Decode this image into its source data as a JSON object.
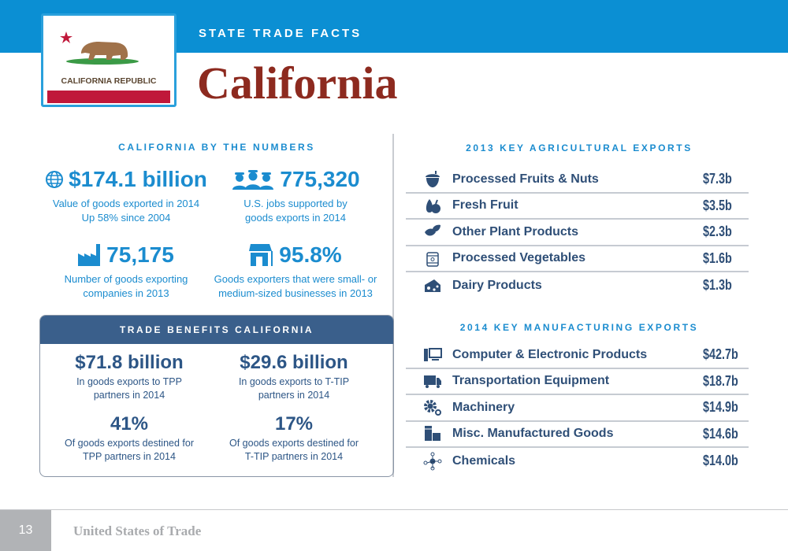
{
  "header": {
    "kicker": "STATE TRADE FACTS",
    "title": "California",
    "flag_text": "CALIFORNIA REPUBLIC"
  },
  "numbers": {
    "heading": "CALIFORNIA BY THE NUMBERS",
    "stats": [
      {
        "icon": "globe-icon",
        "value": "$174.1 billion",
        "desc1": "Value of goods exported in 2014",
        "desc2": "Up 58% since 2004"
      },
      {
        "icon": "workers-icon",
        "value": "775,320",
        "desc1": "U.S. jobs supported by",
        "desc2": "goods exports in 2014"
      },
      {
        "icon": "factory-icon",
        "value": "75,175",
        "desc1": "Number of goods exporting",
        "desc2": "companies in 2013"
      },
      {
        "icon": "storefront-icon",
        "value": "95.8%",
        "desc1": "Goods exporters that were small- or",
        "desc2": "medium-sized businesses in 2013"
      }
    ]
  },
  "benefits": {
    "heading": "TRADE BENEFITS CALIFORNIA",
    "items": [
      {
        "value": "$71.8 billion",
        "desc1": "In goods exports to TPP",
        "desc2": "partners in 2014"
      },
      {
        "value": "$29.6 billion",
        "desc1": "In goods exports to T-TIP",
        "desc2": "partners in 2014"
      },
      {
        "value": "41%",
        "desc1": "Of goods exports destined for",
        "desc2": "TPP partners in 2014"
      },
      {
        "value": "17%",
        "desc1": "Of goods exports destined for",
        "desc2": "T-TIP partners in 2014"
      }
    ]
  },
  "agri": {
    "heading": "2013 KEY AGRICULTURAL EXPORTS",
    "items": [
      {
        "icon": "acorn-icon",
        "label": "Processed Fruits & Nuts",
        "value": "$7.3b"
      },
      {
        "icon": "fruit-icon",
        "label": "Fresh Fruit",
        "value": "$3.5b"
      },
      {
        "icon": "leaf-icon",
        "label": "Other Plant Products",
        "value": "$2.3b"
      },
      {
        "icon": "can-icon",
        "label": "Processed Vegetables",
        "value": "$1.6b"
      },
      {
        "icon": "cheese-icon",
        "label": "Dairy Products",
        "value": "$1.3b"
      }
    ]
  },
  "manu": {
    "heading": "2014 KEY MANUFACTURING EXPORTS",
    "items": [
      {
        "icon": "computer-icon",
        "label": "Computer & Electronic Products",
        "value": "$42.7b"
      },
      {
        "icon": "truck-icon",
        "label": "Transportation Equipment",
        "value": "$18.7b"
      },
      {
        "icon": "gears-icon",
        "label": "Machinery",
        "value": "$14.9b"
      },
      {
        "icon": "boxes-icon",
        "label": "Misc. Manufactured Goods",
        "value": "$14.6b"
      },
      {
        "icon": "molecule-icon",
        "label": "Chemicals",
        "value": "$14.0b"
      }
    ]
  },
  "footer": {
    "page": "13",
    "publication": "United States of Trade"
  },
  "colors": {
    "band": "#0b8fd3",
    "title": "#8d2a1f",
    "stat": "#1b8ccf",
    "benefits_header": "#3a5f8b",
    "list_text": "#2f4f77"
  }
}
